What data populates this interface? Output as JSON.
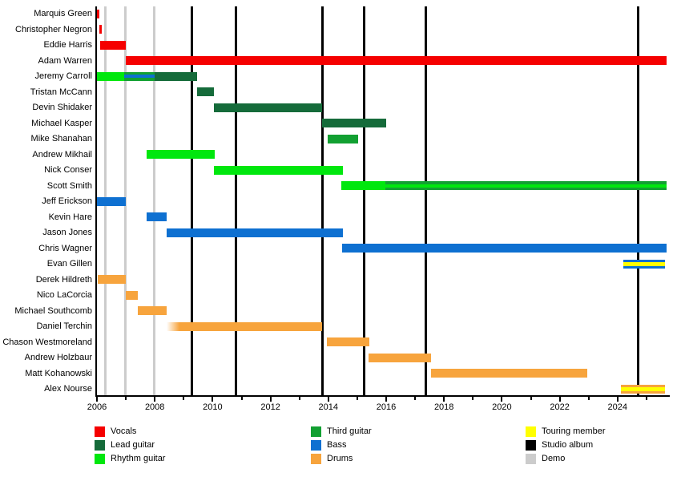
{
  "background": "#ffffff",
  "chart_data": {
    "type": "gantt-timeline",
    "description": "Band members timeline with instrument roles, studio albums and demos",
    "x_axis": {
      "start": 2006,
      "end": 2025.7,
      "year_labels": [
        "2006",
        "2008",
        "2010",
        "2012",
        "2014",
        "2016",
        "2018",
        "2020",
        "2022",
        "2024"
      ],
      "minor_tick_every_year": true
    },
    "role_colors": {
      "vocals": "#f50000",
      "lead_guitar": "#156b3a",
      "rhythm_guitar": "#00e70e",
      "third_guitar": "#12a032",
      "bass": "#0e70d1",
      "drums": "#f7a43d",
      "touring_member": "#ffff00",
      "studio_album": "#000000",
      "demo": "#cccccc"
    },
    "legend_columns": [
      [
        {
          "key": "vocals",
          "label": "Vocals"
        },
        {
          "key": "lead_guitar",
          "label": "Lead guitar"
        },
        {
          "key": "rhythm_guitar",
          "label": "Rhythm guitar"
        }
      ],
      [
        {
          "key": "third_guitar",
          "label": "Third guitar"
        },
        {
          "key": "bass",
          "label": "Bass"
        },
        {
          "key": "drums",
          "label": "Drums"
        }
      ],
      [
        {
          "key": "touring_member",
          "label": "Touring member"
        },
        {
          "key": "studio_album",
          "label": "Studio album"
        },
        {
          "key": "demo",
          "label": "Demo"
        }
      ]
    ],
    "events": {
      "studio_albums": [
        2009.27,
        2010.8,
        2013.79,
        2015.25,
        2017.38,
        2024.7
      ],
      "demos": [
        2006.28,
        2006.97,
        2007.98
      ]
    },
    "members": [
      {
        "name": "Marquis Green",
        "segments": [
          {
            "role": "vocals",
            "start": 2006.0,
            "end": 2006.09
          }
        ]
      },
      {
        "name": "Christopher Negron",
        "segments": [
          {
            "role": "vocals",
            "start": 2006.07,
            "end": 2006.16
          }
        ]
      },
      {
        "name": "Eddie Harris",
        "segments": [
          {
            "role": "vocals",
            "start": 2006.11,
            "end": 2006.99
          }
        ]
      },
      {
        "name": "Adam Warren",
        "segments": [
          {
            "role": "vocals",
            "start": 2006.99,
            "end": 2025.7
          }
        ]
      },
      {
        "name": "Jeremy Carroll",
        "segments": [
          {
            "role": "rhythm_guitar",
            "start": 2006.0,
            "end": 2006.95
          },
          {
            "role": "third_guitar",
            "start": 2006.95,
            "end": 2007.99,
            "stripe": "bass"
          },
          {
            "role": "lead_guitar",
            "start": 2007.99,
            "end": 2009.45
          }
        ]
      },
      {
        "name": "Tristan McCann",
        "segments": [
          {
            "role": "lead_guitar",
            "start": 2009.45,
            "end": 2010.05
          }
        ]
      },
      {
        "name": "Devin Shidaker",
        "segments": [
          {
            "role": "lead_guitar",
            "start": 2010.05,
            "end": 2013.79
          }
        ]
      },
      {
        "name": "Michael Kasper",
        "segments": [
          {
            "role": "lead_guitar",
            "start": 2013.79,
            "end": 2016.0
          }
        ]
      },
      {
        "name": "Mike Shanahan",
        "segments": [
          {
            "role": "third_guitar",
            "start": 2013.98,
            "end": 2015.02
          }
        ]
      },
      {
        "name": "Andrew Mikhail",
        "segments": [
          {
            "role": "rhythm_guitar",
            "start": 2007.72,
            "end": 2010.07
          }
        ]
      },
      {
        "name": "Nick Conser",
        "segments": [
          {
            "role": "rhythm_guitar",
            "start": 2010.05,
            "end": 2014.5
          }
        ]
      },
      {
        "name": "Scott Smith",
        "segments": [
          {
            "role": "rhythm_guitar",
            "start": 2014.45,
            "end": 2015.97
          },
          {
            "role": "third_guitar",
            "start": 2015.97,
            "end": 2025.7,
            "stripe": "rhythm_guitar"
          }
        ]
      },
      {
        "name": "Jeff Erickson",
        "segments": [
          {
            "role": "bass",
            "start": 2006.0,
            "end": 2006.99
          }
        ]
      },
      {
        "name": "Kevin Hare",
        "segments": [
          {
            "role": "bass",
            "start": 2007.72,
            "end": 2008.42
          }
        ]
      },
      {
        "name": "Jason Jones",
        "segments": [
          {
            "role": "bass",
            "start": 2008.42,
            "end": 2014.5
          }
        ]
      },
      {
        "name": "Chris Wagner",
        "segments": [
          {
            "role": "bass",
            "start": 2014.48,
            "end": 2025.7
          }
        ]
      },
      {
        "name": "Evan Gillen",
        "segments": [
          {
            "role": "bass",
            "start": 2024.2,
            "end": 2025.65,
            "stripe": "touring_member"
          }
        ]
      },
      {
        "name": "Derek Hildreth",
        "segments": [
          {
            "role": "drums",
            "start": 2006.04,
            "end": 2006.99
          }
        ]
      },
      {
        "name": "Nico LaCorcia",
        "segments": [
          {
            "role": "drums",
            "start": 2006.99,
            "end": 2007.42
          }
        ]
      },
      {
        "name": "Michael Southcomb",
        "segments": [
          {
            "role": "drums",
            "start": 2007.42,
            "end": 2008.42
          }
        ]
      },
      {
        "name": "Daniel Terchin",
        "segments": [
          {
            "role": "drums",
            "start": 2008.42,
            "end": 2013.79,
            "fade_left": true
          }
        ]
      },
      {
        "name": "Chason Westmoreland",
        "segments": [
          {
            "role": "drums",
            "start": 2013.96,
            "end": 2015.41
          }
        ]
      },
      {
        "name": "Andrew Holzbaur",
        "segments": [
          {
            "role": "drums",
            "start": 2015.4,
            "end": 2017.56
          }
        ]
      },
      {
        "name": "Matt Kohanowski",
        "segments": [
          {
            "role": "drums",
            "start": 2017.54,
            "end": 2022.96
          }
        ]
      },
      {
        "name": "Alex Nourse",
        "segments": [
          {
            "role": "drums",
            "start": 2024.11,
            "end": 2025.65,
            "stripe": "touring_member"
          }
        ]
      }
    ]
  }
}
